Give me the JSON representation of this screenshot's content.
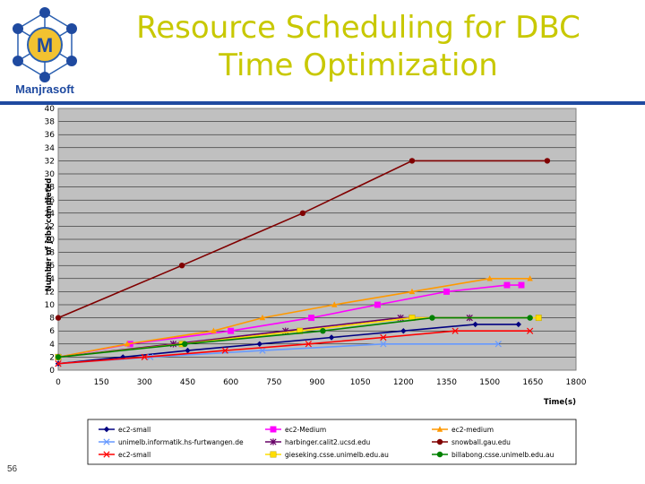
{
  "logo": {
    "text": "Manjrasoft"
  },
  "title": {
    "line1": "Resource Scheduling for DBC",
    "line2": "Time Optimization"
  },
  "slide_number": "56",
  "chart_data": {
    "type": "line",
    "xlabel": "Time(s)",
    "ylabel": "Number of jobs completed",
    "xlim": [
      0,
      1800
    ],
    "ylim": [
      0,
      40
    ],
    "xticks": [
      0,
      150,
      300,
      450,
      600,
      750,
      900,
      1050,
      1200,
      1350,
      1500,
      1650,
      1800
    ],
    "yticks": [
      0,
      2,
      4,
      6,
      8,
      10,
      12,
      14,
      16,
      18,
      20,
      22,
      24,
      26,
      28,
      30,
      32,
      34,
      36,
      38,
      40
    ],
    "grid": "horizontal",
    "legend_position": "bottom",
    "series": [
      {
        "name": "ec2-small",
        "color": "#000080",
        "marker": "diamond",
        "x": [
          0,
          225,
          450,
          700,
          950,
          1200,
          1450,
          1600
        ],
        "y": [
          1,
          2,
          3,
          4,
          5,
          6,
          7,
          7
        ]
      },
      {
        "name": "ec2-Medium",
        "color": "#ff00ff",
        "marker": "square",
        "x": [
          0,
          250,
          600,
          880,
          1110,
          1350,
          1560,
          1610
        ],
        "y": [
          2,
          4,
          6,
          8,
          10,
          12,
          13,
          13
        ]
      },
      {
        "name": "ec2-medium",
        "color": "#ff9900",
        "marker": "triangle",
        "x": [
          0,
          240,
          540,
          710,
          960,
          1230,
          1500,
          1640
        ],
        "y": [
          2,
          4,
          6,
          8,
          10,
          12,
          14,
          14
        ]
      },
      {
        "name": "unimelb.informatik.hs-furtwangen.de",
        "color": "#6699ff",
        "marker": "x",
        "x": [
          0,
          320,
          710,
          1130,
          1530
        ],
        "y": [
          1,
          2,
          3,
          4,
          4
        ]
      },
      {
        "name": "harbinger.calit2.ucsd.edu",
        "color": "#660066",
        "marker": "star",
        "x": [
          0,
          400,
          790,
          1190,
          1430
        ],
        "y": [
          2,
          4,
          6,
          8,
          8
        ]
      },
      {
        "name": "snowball.gau.edu",
        "color": "#800000",
        "marker": "circle",
        "x": [
          0,
          430,
          850,
          1230,
          1700
        ],
        "y": [
          8,
          16,
          24,
          32,
          32
        ]
      },
      {
        "name": "ec2-small",
        "color": "#ff0000",
        "marker": "x",
        "x": [
          0,
          300,
          580,
          870,
          1130,
          1380,
          1640
        ],
        "y": [
          1,
          2,
          3,
          4,
          5,
          6,
          6
        ]
      },
      {
        "name": "gieseking.csse.unimelb.edu.au",
        "color": "#ffdd00",
        "marker": "square",
        "x": [
          0,
          430,
          840,
          1230,
          1670
        ],
        "y": [
          2,
          4,
          6,
          8,
          8
        ]
      },
      {
        "name": "billabong.csse.unimelb.edu.au",
        "color": "#008000",
        "marker": "circle",
        "x": [
          0,
          440,
          920,
          1300,
          1640
        ],
        "y": [
          2,
          4,
          6,
          8,
          8
        ]
      }
    ]
  }
}
